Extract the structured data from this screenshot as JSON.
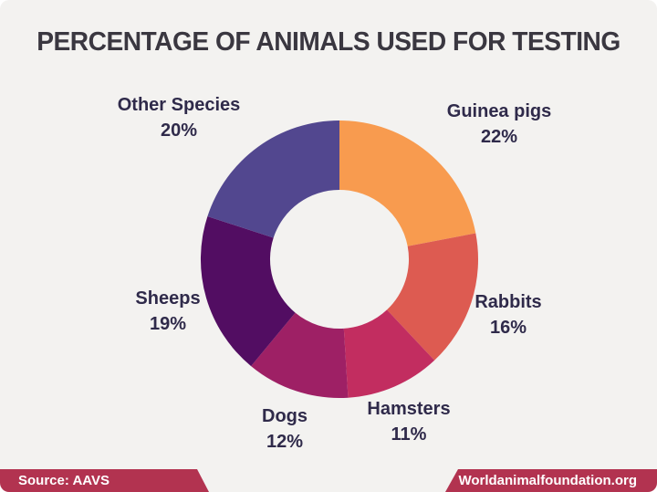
{
  "header": {
    "title": "PERCENTAGE OF ANIMALS USED FOR TESTING"
  },
  "chart_data": {
    "type": "pie",
    "subtype": "donut",
    "title": "PERCENTAGE OF ANIMALS USED FOR TESTING",
    "unit": "%",
    "start_angle_deg": 0,
    "direction": "clockwise",
    "hole_ratio": 0.5,
    "legend": "labels-placed-around-donut",
    "segments": [
      {
        "label": "Guinea pigs",
        "value": 22,
        "display": "22%",
        "color": "#F89B4F"
      },
      {
        "label": "Rabbits",
        "value": 16,
        "display": "16%",
        "color": "#DD5B51"
      },
      {
        "label": "Hamsters",
        "value": 11,
        "display": "11%",
        "color": "#C22D60"
      },
      {
        "label": "Dogs",
        "value": 12,
        "display": "12%",
        "color": "#9E2065"
      },
      {
        "label": "Sheeps",
        "value": 19,
        "display": "19%",
        "color": "#520D62"
      },
      {
        "label": "Other Species",
        "value": 20,
        "display": "20%",
        "color": "#52478F"
      }
    ]
  },
  "footer": {
    "source_label": "Source: AAVS",
    "website_label": "Worldanimalfoundation.org",
    "banner_color": "#B23350"
  },
  "colors": {
    "background": "#F3F2F0",
    "title_text": "#3A3740",
    "label_text": "#2F2A4A"
  }
}
